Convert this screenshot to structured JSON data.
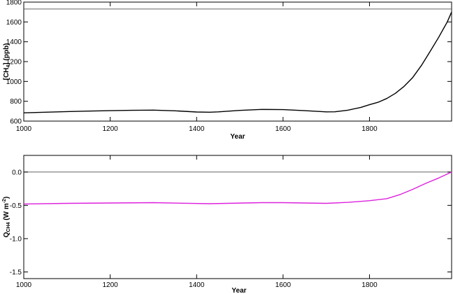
{
  "chart_data": [
    {
      "type": "line",
      "xlabel": "Year",
      "ylabel": "[CH4]  (ppb)",
      "xlim": [
        1000,
        1990
      ],
      "ylim": [
        600,
        1800
      ],
      "xticks": [
        1000,
        1200,
        1400,
        1600,
        1800
      ],
      "yticks": [
        600,
        800,
        1000,
        1200,
        1400,
        1600,
        1800
      ],
      "grid": false,
      "reference_line": {
        "y": 1730,
        "color": "#666666"
      },
      "series": [
        {
          "color": "#000000",
          "x": [
            1000,
            1050,
            1100,
            1150,
            1200,
            1250,
            1300,
            1350,
            1400,
            1430,
            1450,
            1500,
            1550,
            1600,
            1650,
            1700,
            1720,
            1750,
            1780,
            1800,
            1820,
            1840,
            1860,
            1880,
            1900,
            1920,
            1940,
            1960,
            1980,
            1990
          ],
          "values": [
            683,
            690,
            696,
            701,
            705,
            709,
            711,
            704,
            692,
            690,
            693,
            708,
            718,
            716,
            705,
            693,
            694,
            710,
            738,
            765,
            790,
            828,
            880,
            950,
            1040,
            1160,
            1300,
            1445,
            1600,
            1700
          ]
        }
      ]
    },
    {
      "type": "line",
      "xlabel": "Year",
      "ylabel": "QCH4  (W m-2)",
      "xlim": [
        1000,
        1990
      ],
      "ylim": [
        -1.6,
        0.25
      ],
      "xticks": [
        1000,
        1200,
        1400,
        1600,
        1800
      ],
      "yticks": [
        -1.5,
        -1.0,
        -0.5,
        0.0
      ],
      "ytick_labels": [
        "-1.5",
        "-1.0",
        "-0.5",
        "0.0"
      ],
      "grid": false,
      "reference_line": {
        "y": 0.0,
        "color": "#666666"
      },
      "series": [
        {
          "color": "#dd22dd",
          "x": [
            1000,
            1100,
            1200,
            1300,
            1430,
            1550,
            1600,
            1700,
            1750,
            1800,
            1840,
            1870,
            1900,
            1930,
            1960,
            1990
          ],
          "values": [
            -0.48,
            -0.47,
            -0.465,
            -0.46,
            -0.475,
            -0.46,
            -0.46,
            -0.47,
            -0.455,
            -0.43,
            -0.4,
            -0.34,
            -0.26,
            -0.17,
            -0.09,
            0.0
          ]
        }
      ]
    }
  ]
}
